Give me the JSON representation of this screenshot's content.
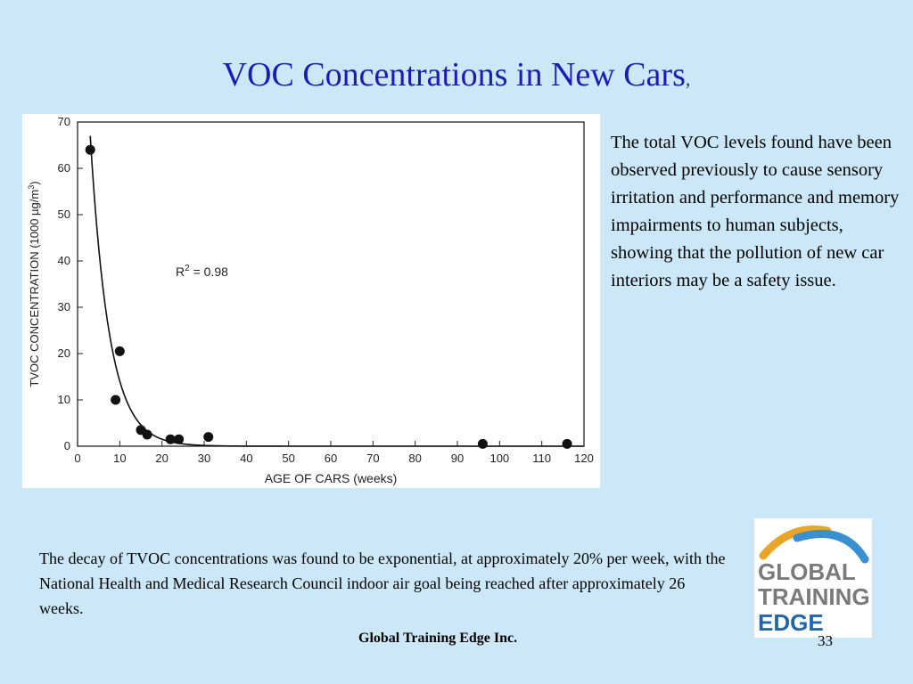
{
  "slide": {
    "title": "VOC Concentrations in New Cars",
    "title_suffix": ",",
    "right_text": "The total VOC levels found have been observed previously to cause sensory irritation and performance and memory impairments to human subjects, showing that the pollution of new car interiors may be a safety issue.",
    "bottom_text": "The decay of TVOC concentrations was found to be exponential, at approximately 20% per week, with the National Health and Medical Research Council  indoor air goal being reached after approximately 26 weeks.",
    "footer": "Global Training Edge Inc.",
    "page_number": "33"
  },
  "logo": {
    "line1": "GLOBAL",
    "line2": "TRAINING",
    "line3": "EDGE",
    "arc_colors": [
      "#e8a52a",
      "#3a8fd0"
    ]
  },
  "colors": {
    "background": "#cce8f8",
    "title": "#1c1cb4",
    "chart_background": "#ffffff"
  },
  "chart_data": {
    "type": "scatter",
    "xlabel": "AGE OF CARS (weeks)",
    "ylabel_main": "TVOC CONCENTRATION (1000 µg/m",
    "ylabel_sup": "3",
    "ylabel_end": ")",
    "annotation_main": "R",
    "annotation_sup": "2",
    "annotation_end": " = 0.98",
    "xlim": [
      0,
      120
    ],
    "ylim": [
      0,
      70
    ],
    "x_ticks": [
      0,
      10,
      20,
      30,
      40,
      50,
      60,
      70,
      80,
      90,
      100,
      110,
      120
    ],
    "y_ticks": [
      0,
      10,
      20,
      30,
      40,
      50,
      60,
      70
    ],
    "grid": false,
    "points": [
      {
        "x": 3,
        "y": 64
      },
      {
        "x": 9,
        "y": 10
      },
      {
        "x": 10,
        "y": 20.5
      },
      {
        "x": 15,
        "y": 3.5
      },
      {
        "x": 16.5,
        "y": 2.5
      },
      {
        "x": 22,
        "y": 1.5
      },
      {
        "x": 24,
        "y": 1.5
      },
      {
        "x": 31,
        "y": 2
      },
      {
        "x": 96,
        "y": 0.5
      },
      {
        "x": 116,
        "y": 0.5
      }
    ],
    "fit": {
      "type": "exponential",
      "start_x": 3,
      "start_y": 67,
      "decay_per_week": 0.2
    }
  }
}
